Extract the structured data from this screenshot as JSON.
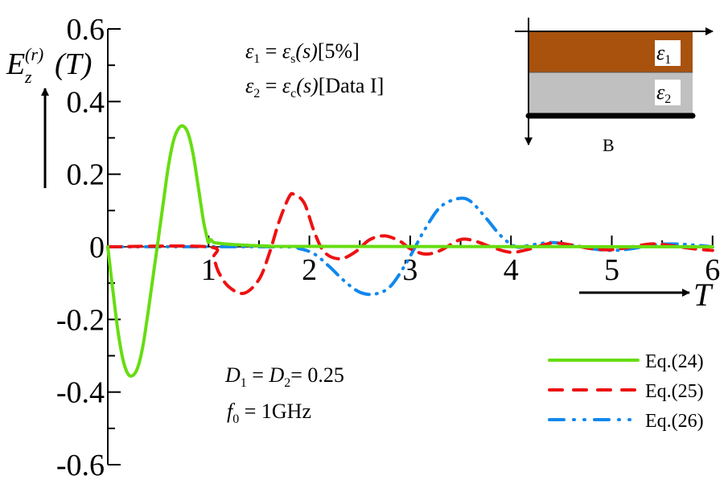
{
  "chart_data": {
    "type": "line",
    "title": "",
    "xlabel": "T",
    "ylabel": "E_z^(r)(T)",
    "ylabel_parts": {
      "base": "E",
      "sub": "z",
      "sup": "(r)",
      "arg": "(T)"
    },
    "xlim": [
      0,
      6
    ],
    "ylim": [
      -0.6,
      0.6
    ],
    "grid": false,
    "x_ticks": [
      0,
      1,
      2,
      3,
      4,
      5,
      6
    ],
    "x_tick_labels": [
      "0",
      "1",
      "2",
      "3",
      "4",
      "5",
      "6"
    ],
    "x_minor_ticks": [
      0.5,
      1.5,
      2.5,
      3.5,
      4.5,
      5.5
    ],
    "y_ticks": [
      0.6,
      0.4,
      0.2,
      0,
      -0.2,
      -0.4,
      -0.6
    ],
    "y_tick_labels": [
      "0.6",
      "0.4",
      "0.2",
      "0",
      "-0.2",
      "-0.4",
      "-0.6"
    ],
    "y_minor_ticks": [
      0.5,
      0.3,
      0.1,
      -0.1,
      -0.3,
      -0.5
    ],
    "legend_position": "lower right",
    "series": [
      {
        "name": "Eq.(24)",
        "color": "#66dd11",
        "style": "solid",
        "x": [
          0,
          0.05,
          0.1,
          0.15,
          0.2,
          0.25,
          0.3,
          0.35,
          0.4,
          0.45,
          0.5,
          0.55,
          0.6,
          0.65,
          0.7,
          0.75,
          0.8,
          0.85,
          0.9,
          0.95,
          0.99,
          1.0,
          1.02,
          1.05,
          1.1,
          1.2,
          1.4,
          1.6,
          2.0,
          6.0
        ],
        "values": [
          0,
          -0.12,
          -0.23,
          -0.31,
          -0.35,
          -0.354,
          -0.33,
          -0.27,
          -0.18,
          -0.08,
          0.02,
          0.12,
          0.22,
          0.29,
          0.325,
          0.332,
          0.31,
          0.25,
          0.16,
          0.07,
          0.02,
          0.012,
          0.02,
          0.012,
          0.01,
          0.007,
          0.004,
          0.002,
          0.001,
          0
        ]
      },
      {
        "name": "Eq.(25)",
        "color": "#ee1111",
        "style": "dashed",
        "x": [
          0,
          1.0,
          1.05,
          1.1,
          1.2,
          1.35,
          1.5,
          1.6,
          1.7,
          1.8,
          1.85,
          1.95,
          2.05,
          2.15,
          2.3,
          2.45,
          2.6,
          2.75,
          2.9,
          3.0,
          3.15,
          3.3,
          3.5,
          3.65,
          3.8,
          4.0,
          4.2,
          4.4,
          4.6,
          4.8,
          5.0,
          5.2,
          5.4,
          5.6,
          5.8,
          6.0
        ],
        "values": [
          0,
          0,
          -0.03,
          -0.07,
          -0.11,
          -0.128,
          -0.09,
          -0.02,
          0.07,
          0.138,
          0.144,
          0.12,
          0.04,
          -0.015,
          -0.033,
          -0.015,
          0.02,
          0.03,
          0.015,
          -0.005,
          -0.02,
          -0.01,
          0.02,
          0.015,
          0,
          -0.015,
          -0.005,
          0.01,
          0.005,
          -0.005,
          -0.008,
          0,
          0.008,
          0.003,
          -0.005,
          -0.01
        ]
      },
      {
        "name": "Eq.(26)",
        "color": "#1188ee",
        "style": "dash-dot-dot",
        "x": [
          0,
          1.7,
          1.9,
          2.05,
          2.2,
          2.35,
          2.5,
          2.65,
          2.8,
          2.95,
          3.05,
          3.15,
          3.3,
          3.48,
          3.6,
          3.75,
          3.9,
          4.05,
          4.2,
          4.4,
          4.6,
          4.8,
          5.0,
          5.2,
          5.4,
          5.6,
          5.8,
          6.0
        ],
        "values": [
          0,
          0,
          -0.005,
          -0.02,
          -0.055,
          -0.095,
          -0.125,
          -0.13,
          -0.11,
          -0.05,
          0,
          0.05,
          0.11,
          0.133,
          0.125,
          0.08,
          0.03,
          0,
          0.005,
          0.012,
          0.005,
          -0.005,
          -0.01,
          -0.005,
          0.005,
          0.008,
          0.005,
          0
        ]
      }
    ],
    "annotations": {
      "eps1": {
        "lhs": "ε",
        "lhs_sub": "1",
        "rhs": "ε",
        "rhs_sub": "s",
        "arg": "(s)",
        "bracket": "[5%]"
      },
      "eps2": {
        "lhs": "ε",
        "lhs_sub": "2",
        "rhs": "ε",
        "rhs_sub": "c",
        "arg": "(s)",
        "bracket": "[Data I]"
      },
      "d_params": {
        "a": "D",
        "a_sub": "1",
        "b": "D",
        "b_sub": "2",
        "value": "= 0.25"
      },
      "f_param": {
        "a": "f",
        "a_sub": "0",
        "value": "= 1GHz"
      }
    },
    "inset": {
      "layer1_label": "ε",
      "layer1_sub": "1",
      "layer1_color": "#a8520e",
      "layer2_label": "ε",
      "layer2_sub": "2",
      "layer2_color": "#c0c0c0",
      "boundary_label": "B"
    }
  }
}
